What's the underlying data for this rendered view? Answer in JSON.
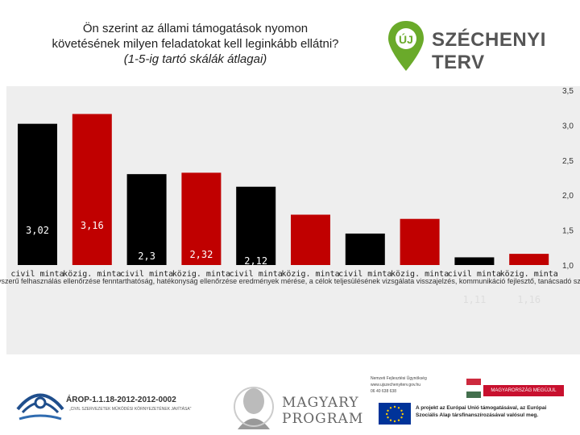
{
  "header": {
    "title_line1": "Ön szerint az állami támogatások nyomon",
    "title_line2": "követésének milyen feladatokat kell leginkább ellátni?",
    "title_line3": "(1-5-ig tartó skálák átlagai)"
  },
  "logo": {
    "brand_prefix": "ÚJ",
    "brand_name": "SZÉCHENYI TERV",
    "pin_color": "#6aaa2a"
  },
  "chart_data": {
    "type": "bar",
    "ylim": [
      1.0,
      3.5
    ],
    "yticks": [
      "3,5",
      "3,0",
      "2,5",
      "2,0",
      "1,5",
      "1,0"
    ],
    "ytick_values": [
      3.5,
      3.0,
      2.5,
      2.0,
      1.5,
      1.0
    ],
    "categories": [
      "civil minta",
      "közig. minta",
      "civil minta",
      "közig. minta",
      "civil minta",
      "közig. minta",
      "civil minta",
      "közig. minta",
      "civil minta",
      "közig. minta"
    ],
    "values": [
      3.02,
      3.16,
      2.3,
      2.32,
      2.12,
      1.72,
      1.45,
      1.66,
      1.11,
      1.16
    ],
    "value_labels": [
      "3,02",
      "3,16",
      "2,3",
      "2,32",
      "2,12",
      "",
      "",
      "",
      "1,11",
      "1,16"
    ],
    "bar_colors": [
      "#000000",
      "#c00000",
      "#000000",
      "#c00000",
      "#000000",
      "#c00000",
      "#000000",
      "#c00000",
      "#000000",
      "#c00000"
    ],
    "group_labels_overlapping": "lyszerű felhasználás ellenőrzése fenntarthatóság, hatékonyság ellenőrzése eredmények mérése, a célok teljesülésének vizsgálata visszajelzés, kommunikáció fejlesztő, tanácsadó szerep",
    "grid": false
  },
  "footer": {
    "arop_title": "ÁROP-1.1.18-2012-2012-0002",
    "arop_sub": "„CIVIL SZERVEZETEK MŰKÖDÉSI KÖRNYEZETÉNEK JAVÍTÁSA\"",
    "magyary_line1": "MAGYARY",
    "magyary_line2": "PROGRAM",
    "nfu_line1": "Nemzeti Fejlesztési Ügynökség",
    "nfu_line2": "www.ujszechenyiterv.gov.hu",
    "nfu_line3": "06 40 638 638",
    "hu_badge": "MAGYARORSZÁG MEGÚJUL",
    "eu_text": "A projekt az Európai Unió támogatásával, az Európai Szociális Alap társfinanszírozásával valósul meg."
  }
}
